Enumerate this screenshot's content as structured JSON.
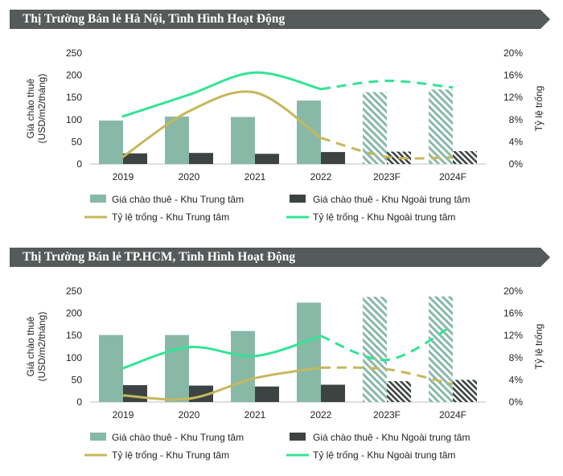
{
  "colors": {
    "title_bg": "#555a5a",
    "bar_center": "#88b9a7",
    "bar_outer": "#3d4343",
    "line_center": "#c5b85c",
    "line_outer": "#33e494",
    "axis_text": "#222222"
  },
  "legend_labels": {
    "bar_center": "Giá chào thuê - Khu Trung tâm",
    "bar_outer": "Giá chào thuê - Khu Ngoài trung tâm",
    "line_center": "Tỷ lệ trống - Khu Trung tâm",
    "line_outer": "Tỷ lệ trống - Khu Ngoài trung tâm"
  },
  "chart_data": [
    {
      "type": "bar",
      "title": "Thị Trường Bán lẻ Hà Nội, Tình Hình Hoạt Động",
      "categories": [
        "2019",
        "2020",
        "2021",
        "2022",
        "2023F",
        "2024F"
      ],
      "forecast_from_index": 4,
      "ylabel": "Giá chào thuê\n(USD/m2/tháng)",
      "y2label": "Tỷ lệ trống",
      "ylim": [
        0,
        250
      ],
      "y_ticks": [
        "0",
        "50",
        "100",
        "150",
        "200",
        "250"
      ],
      "y2lim": [
        0,
        20
      ],
      "y2_ticks": [
        "0%",
        "4%",
        "8%",
        "12%",
        "16%",
        "20%"
      ],
      "series": [
        {
          "key": "bar_center",
          "name": "Giá chào thuê - Khu Trung tâm",
          "kind": "bar",
          "axis": "left",
          "values": [
            98,
            107,
            106,
            143,
            162,
            168
          ]
        },
        {
          "key": "bar_outer",
          "name": "Giá chào thuê - Khu Ngoài trung tâm",
          "kind": "bar",
          "axis": "left",
          "values": [
            24,
            25,
            23,
            27,
            28,
            29
          ]
        },
        {
          "key": "line_center",
          "name": "Tỷ lệ trống - Khu Trung tâm",
          "kind": "line",
          "axis": "right",
          "values": [
            1.3,
            9.5,
            12.9,
            4.7,
            1.3,
            1.2
          ]
        },
        {
          "key": "line_outer",
          "name": "Tỷ lệ trống - Khu Ngoài trung tâm",
          "kind": "line",
          "axis": "right",
          "values": [
            8.6,
            12.5,
            16.5,
            13.5,
            15.0,
            13.8
          ]
        }
      ]
    },
    {
      "type": "bar",
      "title": "Thị Trường Bán lẻ TP.HCM, Tình Hình Hoạt Động",
      "categories": [
        "2019",
        "2020",
        "2021",
        "2022",
        "2023F",
        "2024F"
      ],
      "forecast_from_index": 4,
      "ylabel": "Giá chào thuê\n(USD/m2/tháng)",
      "y2label": "Tỷ lệ trống",
      "ylim": [
        0,
        250
      ],
      "y_ticks": [
        "0",
        "50",
        "100",
        "150",
        "200",
        "250"
      ],
      "y2lim": [
        0,
        20
      ],
      "y2_ticks": [
        "0%",
        "4%",
        "8%",
        "12%",
        "16%",
        "20%"
      ],
      "series": [
        {
          "key": "bar_center",
          "name": "Giá chào thuê - Khu Trung tâm",
          "kind": "bar",
          "axis": "left",
          "values": [
            151,
            151,
            160,
            224,
            237,
            238
          ]
        },
        {
          "key": "bar_outer",
          "name": "Giá chào thuê - Khu Ngoài trung tâm",
          "kind": "bar",
          "axis": "left",
          "values": [
            38,
            37,
            35,
            39,
            47,
            50
          ]
        },
        {
          "key": "line_center",
          "name": "Tỷ lệ trống - Khu Trung tâm",
          "kind": "line",
          "axis": "right",
          "values": [
            1.2,
            0.6,
            4.3,
            6.2,
            5.9,
            3.2
          ]
        },
        {
          "key": "line_outer",
          "name": "Tỷ lệ trống - Khu Ngoài trung tâm",
          "kind": "line",
          "axis": "right",
          "values": [
            6.1,
            9.9,
            8.3,
            11.9,
            7.6,
            13.8
          ]
        }
      ]
    }
  ]
}
